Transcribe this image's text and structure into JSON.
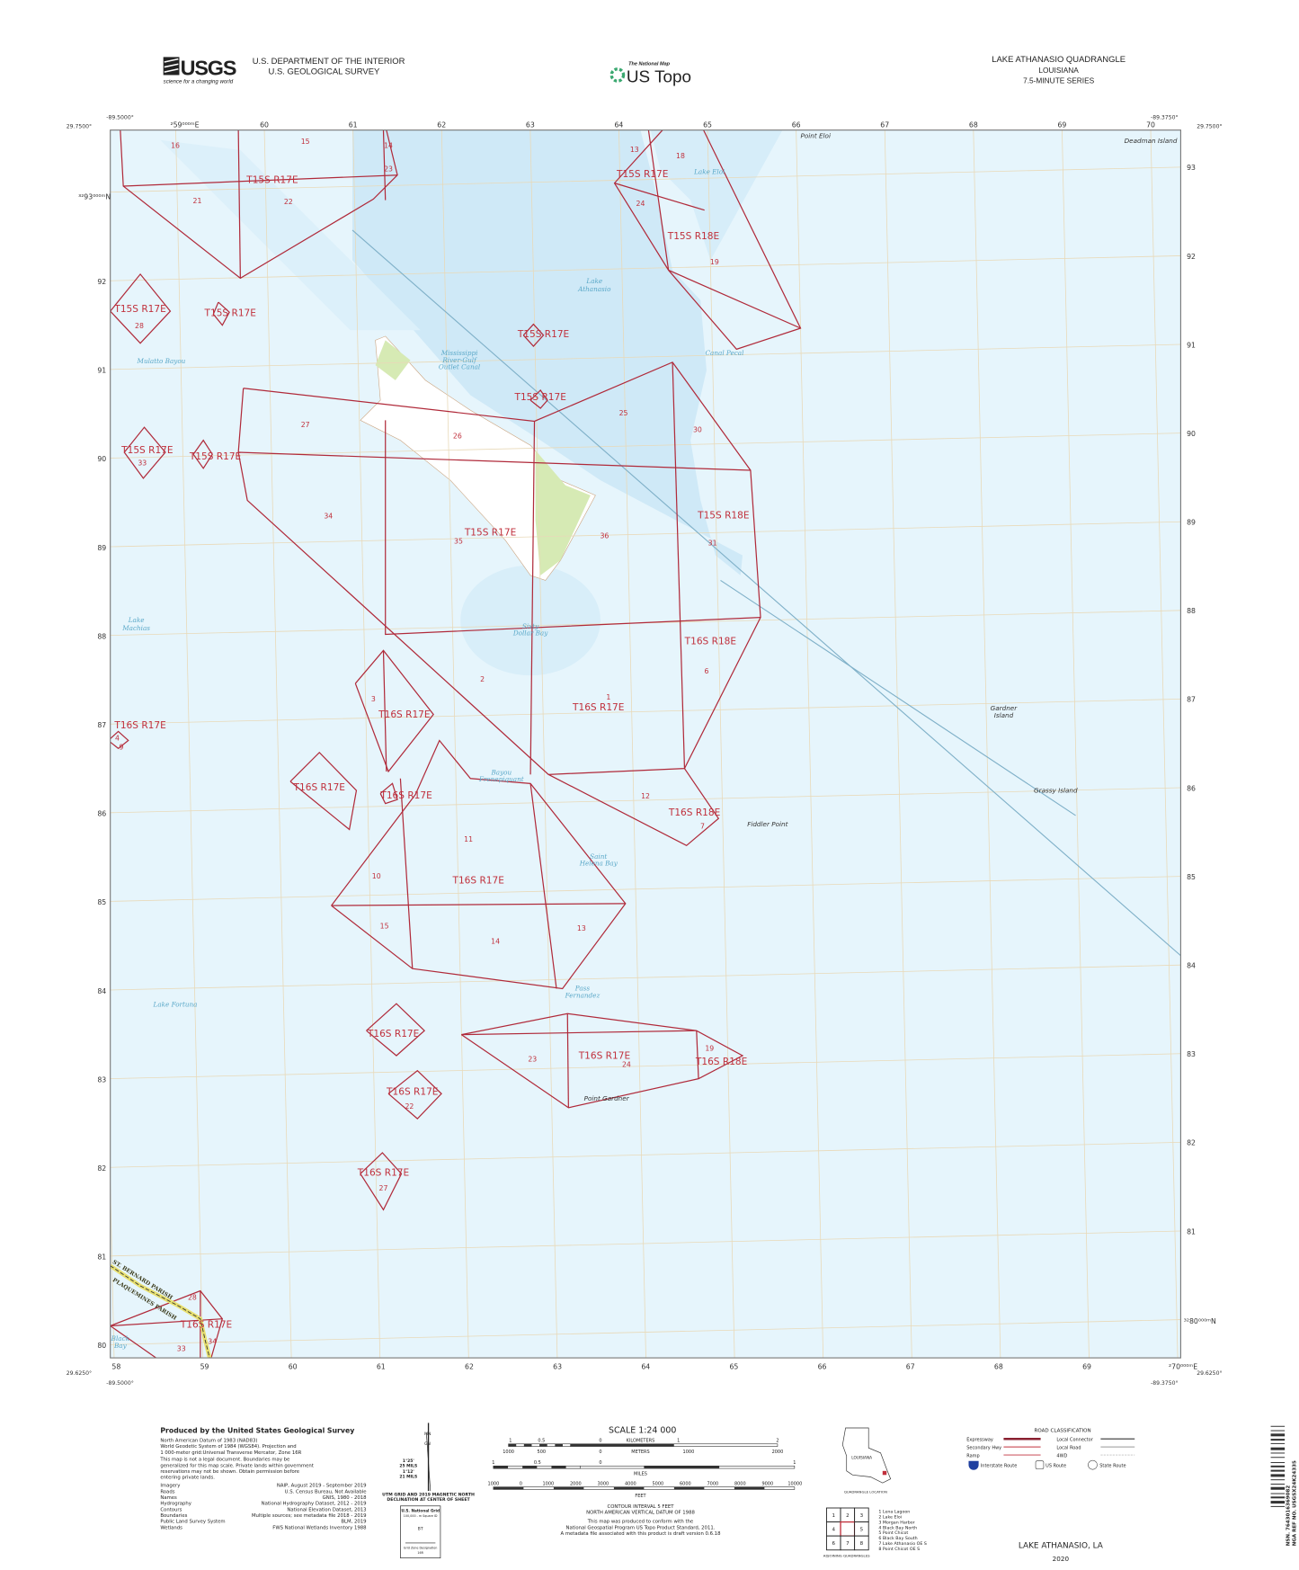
{
  "header": {
    "agency_logo": "USGS",
    "agency_tagline": "science for a changing world",
    "department": "U.S. DEPARTMENT OF THE INTERIOR",
    "survey": "U.S. GEOLOGICAL SURVEY",
    "product_small": "The National Map",
    "product": "US Topo",
    "quad_title": "LAKE ATHANASIO QUADRANGLE",
    "state": "LOUISIANA",
    "series": "7.5-MINUTE SERIES"
  },
  "map": {
    "corners": {
      "top_left_lon": "-89.5000°",
      "top_left_lat": "29.7500°",
      "top_right_lon": "-89.3750°",
      "top_right_lat": "29.7500°",
      "bottom_left_lon": "-89.5000°",
      "bottom_left_lat": "29.6250°",
      "bottom_right_lon": "-89.3750°",
      "bottom_right_lat": "29.6250°"
    },
    "easting_first_top": "²59⁰⁰⁰ᵐE",
    "easting_top": [
      "60",
      "61",
      "62",
      "63",
      "64",
      "65",
      "66",
      "67",
      "68",
      "69",
      "70"
    ],
    "easting_bottom": [
      "58",
      "59",
      "60",
      "61",
      "62",
      "63",
      "64",
      "65",
      "66",
      "67",
      "68",
      "69"
    ],
    "easting_last_bottom": "²70⁰⁰⁰ᵐE",
    "northing_first_left": "³²93⁰⁰⁰ᵐN",
    "northing_left": [
      "92",
      "91",
      "90",
      "89",
      "88",
      "87",
      "86",
      "85",
      "84",
      "83",
      "82",
      "81",
      "80"
    ],
    "northing_right": [
      "93",
      "92",
      "91",
      "90",
      "89",
      "88",
      "87",
      "86",
      "85",
      "84",
      "83",
      "82",
      "81"
    ],
    "northing_last_right": "³²80⁰⁰⁰ᵐN",
    "townships": [
      "T15S R17E",
      "T15S R17E",
      "T15S R17E",
      "T15S R17E",
      "T15S R17E",
      "T15S R17E",
      "T15S R17E",
      "T15S R17E",
      "T15S R17E",
      "T15S R18E",
      "T15S R18E",
      "T16S R17E",
      "T16S R17E",
      "T16S R17E",
      "T16S R17E",
      "T16S R17E",
      "T16S R17E",
      "T16S R17E",
      "T16S R17E",
      "T16S R17E",
      "T16S R17E",
      "T16S R17E",
      "T16S R18E",
      "T16S R18E",
      "T16S R18E"
    ],
    "sections": [
      "16",
      "15",
      "14",
      "23",
      "21",
      "22",
      "28",
      "13",
      "18",
      "24",
      "19",
      "27",
      "26",
      "25",
      "30",
      "33",
      "34",
      "35",
      "36",
      "31",
      "2",
      "1",
      "6",
      "3",
      "4",
      "9",
      "12",
      "7",
      "11",
      "10",
      "15",
      "14",
      "13",
      "23",
      "24",
      "19",
      "22",
      "27",
      "28",
      "34",
      "33"
    ],
    "water_names": [
      "Lake Eloi",
      "Lake",
      "Athanasio",
      "Mississippi",
      "River-Gulf",
      "Outlet Canal",
      "Canal Pecal",
      "Mulatto Bayou",
      "Lake",
      "Machias",
      "Sixty",
      "Dollar Bay",
      "Bayou",
      "Frenepiquant",
      "Saint",
      "Helena Bay",
      "Pass",
      "Fernandez",
      "Lake Fortuna",
      "Black",
      "Bay"
    ],
    "place_names": [
      "Point Eloi",
      "Deadman Island",
      "Gardner",
      "Island",
      "Grassy Island",
      "Fiddler Point",
      "Point Gardner"
    ],
    "parishes": [
      "ST. BERNARD PARISH",
      "PLAQUEMINES PARISH"
    ],
    "colors": {
      "water": "#e6f5fc",
      "deep_water": "#cfe9f7",
      "land": "#ffffff",
      "vegetation": "#d6eab4",
      "boundary": "#b02a3a",
      "grid": "#e8d9b8"
    }
  },
  "footer": {
    "producer": "Produced by the United States Geological Survey",
    "datum_lines": [
      "North American Datum of 1983 (NAD83)",
      "World Geodetic System of 1984 (WGS84).  Projection and",
      "1 000-meter grid:Universal Transverse Mercator, Zone 16R"
    ],
    "disclaimer_lines": [
      "This map is not a legal document. Boundaries may be",
      "generalized for this map scale. Private lands within government",
      "reservations may not be shown. Obtain permission before",
      "entering private lands."
    ],
    "sources": [
      {
        "label": "Imagery",
        "value": "NAIP, August 2019 - September 2019"
      },
      {
        "label": "Roads",
        "value": "U.S. Census Bureau, Not Available"
      },
      {
        "label": "Names",
        "value": "GNIS, 1980 - 2018"
      },
      {
        "label": "Hydrography",
        "value": "National Hydrography Dataset, 2012 - 2019"
      },
      {
        "label": "Contours",
        "value": "National Elevation Dataset, 2013"
      },
      {
        "label": "Boundaries",
        "value": "Multiple sources; see metadata file 2018 - 2019"
      },
      {
        "label": "Public Land Survey System",
        "value": "BLM, 2019"
      },
      {
        "label": "Wetlands",
        "value": "FWS National Wetlands Inventory 1988"
      }
    ],
    "declination": {
      "gn": "GN",
      "mn": "MN",
      "angle1": "1°25'",
      "mils1": "25 MILS",
      "angle2": "1°12'",
      "mils2": "21 MILS",
      "caption1": "UTM GRID AND 2019 MAGNETIC NORTH",
      "caption2": "DECLINATION AT CENTER OF SHEET"
    },
    "usng": {
      "title": "U.S. National Grid",
      "sub": "100,000 - m Square ID",
      "square": "BT",
      "gzd_label": "Grid Zone Designation",
      "gzd": "16R"
    },
    "scale": {
      "title": "SCALE 1:24 000",
      "km_ticks": [
        "1",
        "0.5",
        "0",
        "1",
        "2"
      ],
      "km_label": "KILOMETERS",
      "m_ticks": [
        "1000",
        "500",
        "0",
        "1000",
        "2000"
      ],
      "m_label": "METERS",
      "mi_ticks": [
        "1",
        "0.5",
        "0",
        "1"
      ],
      "mi_label": "MILES",
      "ft_ticks": [
        "1000",
        "0",
        "1000",
        "2000",
        "3000",
        "4000",
        "5000",
        "6000",
        "7000",
        "8000",
        "9000",
        "10000"
      ],
      "ft_label": "FEET"
    },
    "contour_lines": [
      "CONTOUR INTERVAL 5 FEET",
      "NORTH AMERICAN VERTICAL DATUM OF 1988"
    ],
    "standard_lines": [
      "This map was produced to conform with the",
      "National Geospatial Program US Topo Product Standard, 2011.",
      "A metadata file associated with this product is draft version 0.6.18"
    ],
    "location": {
      "state": "LOUISIANA",
      "caption": "QUADRANGLE LOCATION"
    },
    "adjoining": {
      "caption": "ADJOINING QUADRANGLES",
      "cells": [
        "1",
        "2",
        "3",
        "4",
        "",
        "5",
        "6",
        "7",
        "8"
      ],
      "names": [
        "1 Lena Lagoon",
        "2 Lake Eloi",
        "3 Morgan Harbor",
        "4 Black Bay North",
        "5 Point Chicot",
        "6 Black Bay South",
        "7 Lake Athanasio OE S",
        "8 Point Chicot OE S"
      ]
    },
    "roads": {
      "title": "ROAD CLASSIFICATION",
      "left": [
        "Expressway",
        "Secondary Hwy",
        "Ramp"
      ],
      "right": [
        "Local Connector",
        "Local Road",
        "4WD"
      ],
      "routes": [
        "Interstate Route",
        "US Route",
        "State Route"
      ]
    },
    "sheet_name": "LAKE ATHANASIO,  LA",
    "year": "2020",
    "barcode": {
      "nsn": "NSN.  7643016369082",
      "nga": "NGA REF NO. USGSX24K24335"
    }
  }
}
